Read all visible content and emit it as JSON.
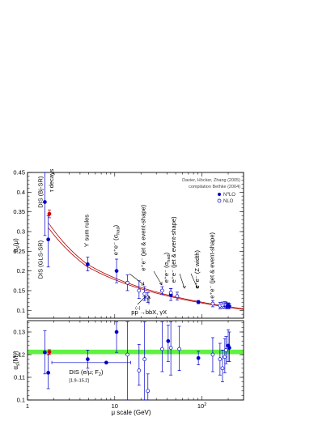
{
  "chart_data": {
    "type": "scatter",
    "credits": [
      "Davier, Höcker, Zhang (2005)",
      "compilation Bethke (2004)"
    ],
    "legend": [
      {
        "marker": "filled-circle",
        "label": "N³LO",
        "n3": "3"
      },
      {
        "marker": "open-circle",
        "label": "NLO"
      }
    ],
    "xlabel": "μ scale    (GeV)",
    "xscale": "log",
    "xlim": [
      1,
      300
    ],
    "x_ticks": [
      {
        "value": 1,
        "label": "1"
      },
      {
        "value": 10,
        "label": "10"
      },
      {
        "value": 100,
        "label": "10",
        "sup": "2"
      }
    ],
    "top_panel": {
      "ylabel": "α",
      "ylabel_sub": "s",
      "ylabel_arg": "(μ)",
      "ylim": [
        0.08,
        0.45
      ],
      "y_ticks": [
        0.1,
        0.15,
        0.2,
        0.25,
        0.3,
        0.35,
        0.4,
        0.45
      ],
      "y_tick_labels": [
        "0.1",
        "0.15",
        "0.2",
        "0.25",
        "0.3",
        "0.35",
        "0.4",
        "0.45"
      ],
      "points": [
        {
          "x": 1.58,
          "y": 0.375,
          "lo": 0.29,
          "hi": 0.45,
          "filled": true
        },
        {
          "x": 1.73,
          "y": 0.28,
          "lo": 0.21,
          "hi": 0.34,
          "filled": true
        },
        {
          "x": 1.78,
          "y": 0.345,
          "lo": 0.335,
          "hi": 0.355,
          "filled": true,
          "color": "#d00000"
        },
        {
          "x": 4.9,
          "y": 0.217,
          "lo": 0.2,
          "hi": 0.235,
          "filled": true
        },
        {
          "x": 10.5,
          "y": 0.2,
          "lo": 0.17,
          "hi": 0.23,
          "filled": true
        },
        {
          "x": 14,
          "y": 0.17,
          "lo": 0.15,
          "hi": 0.19,
          "filled": false
        },
        {
          "x": 19,
          "y": 0.15,
          "lo": 0.13,
          "hi": 0.175,
          "filled": false
        },
        {
          "x": 22,
          "y": 0.142,
          "lo": 0.125,
          "hi": 0.16,
          "filled": false
        },
        {
          "x": 24,
          "y": 0.133,
          "lo": 0.12,
          "hi": 0.145,
          "filled": false
        },
        {
          "x": 35,
          "y": 0.15,
          "lo": 0.14,
          "hi": 0.16,
          "filled": false
        },
        {
          "x": 44,
          "y": 0.14,
          "lo": 0.125,
          "hi": 0.155,
          "filled": true
        },
        {
          "x": 44,
          "y": 0.145,
          "lo": 0.135,
          "hi": 0.155,
          "filled": false
        },
        {
          "x": 52,
          "y": 0.136,
          "lo": 0.126,
          "hi": 0.146,
          "filled": false
        },
        {
          "x": 91,
          "y": 0.121,
          "lo": 0.117,
          "hi": 0.125,
          "filled": true
        },
        {
          "x": 133,
          "y": 0.117,
          "lo": 0.109,
          "hi": 0.125,
          "filled": false
        },
        {
          "x": 161,
          "y": 0.112,
          "lo": 0.104,
          "hi": 0.12,
          "filled": false
        },
        {
          "x": 172,
          "y": 0.113,
          "lo": 0.105,
          "hi": 0.121,
          "filled": false
        },
        {
          "x": 183,
          "y": 0.114,
          "lo": 0.106,
          "hi": 0.122,
          "filled": false
        },
        {
          "x": 189,
          "y": 0.113,
          "lo": 0.105,
          "hi": 0.121,
          "filled": false
        },
        {
          "x": 195,
          "y": 0.111,
          "lo": 0.104,
          "hi": 0.118,
          "filled": true
        },
        {
          "x": 200,
          "y": 0.112,
          "lo": 0.105,
          "hi": 0.119,
          "filled": true
        },
        {
          "x": 206,
          "y": 0.111,
          "lo": 0.104,
          "hi": 0.118,
          "filled": true
        }
      ],
      "labels": [
        {
          "text": "DIS (Bj-SR)",
          "x": 1.48,
          "y": 0.36,
          "rot": -90
        },
        {
          "text": "τ decays",
          "x": 1.98,
          "y": 0.4,
          "rot": -90
        },
        {
          "text": "DIS (GLS-SR)",
          "x": 1.48,
          "y": 0.18,
          "rot": -90
        },
        {
          "text": "ϒ sum rules",
          "x": 5.0,
          "y": 0.26,
          "rot": -90
        },
        {
          "text": "e⁺e⁻ (σ",
          "sub": "had",
          "tail": ")",
          "x": 10.8,
          "y": 0.24,
          "rot": -90
        },
        {
          "text": "e⁺e⁻ (jet & event-shape)",
          "x": 22.5,
          "y": 0.2,
          "rot": -90
        },
        {
          "text": "e⁺e⁻ (σ",
          "sub": "had",
          "tail": ")",
          "x": 41,
          "y": 0.17,
          "rot": -90
        },
        {
          "text": "e⁺e⁻ (jet & event-shape)",
          "x": 50,
          "y": 0.17,
          "rot": -90
        },
        {
          "text": "e⁺e⁻ (Z width)",
          "x": 93,
          "y": 0.155,
          "rot": -90
        },
        {
          "text": "e⁺e⁻ (jet & event-shape)",
          "x": 138,
          "y": 0.13,
          "rot": -90
        },
        {
          "text": "pp",
          "x": 15.5,
          "y": 0.09,
          "rot": 0
        },
        {
          "text": "→bbX, γX",
          "x": 19.2,
          "y": 0.09,
          "rot": 0
        }
      ]
    },
    "bottom_panel": {
      "ylabel": "α",
      "ylabel_sub": "s",
      "ylabel_arg": "(M",
      "ylabel_arg_sub": "Z",
      "ylabel_tail": ")",
      "ylim": [
        0.1,
        0.135
      ],
      "y_ticks": [
        0.1,
        0.11,
        0.12,
        0.13
      ],
      "y_tick_labels": [
        "0.1",
        "0.11",
        "0.12",
        "0.13"
      ],
      "band": [
        0.1202,
        0.1222
      ],
      "points": [
        {
          "x": 1.58,
          "y": 0.121,
          "lo": 0.1115,
          "hi": 0.1305,
          "filled": true
        },
        {
          "x": 1.73,
          "y": 0.112,
          "lo": 0.105,
          "hi": 0.12,
          "filled": true
        },
        {
          "x": 1.78,
          "y": 0.1212,
          "lo": 0.1202,
          "hi": 0.1222,
          "filled": true,
          "color": "#d00000"
        },
        {
          "x": 4.9,
          "y": 0.118,
          "lo": 0.114,
          "hi": 0.122,
          "filled": true
        },
        {
          "x": 8.0,
          "y": 0.1165,
          "lo": 0.1165,
          "hi": 0.1165,
          "filled": true,
          "xlo": 1.9,
          "xhi": 15.2
        },
        {
          "x": 10.5,
          "y": 0.13,
          "lo": 0.121,
          "hi": 0.1345,
          "filled": true
        },
        {
          "x": 14,
          "y": 0.12,
          "lo": 0.1,
          "hi": 0.1345,
          "filled": false
        },
        {
          "x": 19,
          "y": 0.113,
          "lo": 0.1065,
          "hi": 0.1245,
          "filled": false
        },
        {
          "x": 22,
          "y": 0.118,
          "lo": 0.1,
          "hi": 0.1345,
          "filled": false
        },
        {
          "x": 24,
          "y": 0.104,
          "lo": 0.1,
          "hi": 0.1115,
          "filled": false
        },
        {
          "x": 35,
          "y": 0.1225,
          "lo": 0.1125,
          "hi": 0.1345,
          "filled": false
        },
        {
          "x": 41,
          "y": 0.126,
          "lo": 0.117,
          "hi": 0.133,
          "filled": true
        },
        {
          "x": 44,
          "y": 0.123,
          "lo": 0.111,
          "hi": 0.1345,
          "filled": false
        },
        {
          "x": 55,
          "y": 0.1225,
          "lo": 0.113,
          "hi": 0.1325,
          "filled": false
        },
        {
          "x": 91,
          "y": 0.1185,
          "lo": 0.1155,
          "hi": 0.1215,
          "filled": true
        },
        {
          "x": 133,
          "y": 0.12,
          "lo": 0.1125,
          "hi": 0.1275,
          "filled": false
        },
        {
          "x": 161,
          "y": 0.118,
          "lo": 0.111,
          "hi": 0.125,
          "filled": false
        },
        {
          "x": 172,
          "y": 0.114,
          "lo": 0.108,
          "hi": 0.122,
          "filled": false
        },
        {
          "x": 183,
          "y": 0.119,
          "lo": 0.112,
          "hi": 0.127,
          "filled": false
        },
        {
          "x": 189,
          "y": 0.122,
          "lo": 0.116,
          "hi": 0.128,
          "filled": false
        },
        {
          "x": 200,
          "y": 0.124,
          "lo": 0.117,
          "hi": 0.131,
          "filled": true
        },
        {
          "x": 206,
          "y": 0.123,
          "lo": 0.117,
          "hi": 0.13,
          "filled": true
        }
      ],
      "labels": [
        {
          "text": "DIS (e/μ; F",
          "sub": "2",
          "tail": ")",
          "x": 3.0,
          "y": 0.1115,
          "size": 7.5
        },
        {
          "text": "[1.9–15.2]",
          "x": 3.0,
          "y": 0.108,
          "size": 5.5
        }
      ]
    },
    "curve_alpha_mz": 0.1212,
    "curve_band": [
      0.1202,
      0.1222
    ],
    "colors": {
      "points": "#0000cc",
      "curve": "#b00000",
      "tau": "#d00000",
      "band": "#44ee22",
      "frame": "#000000"
    }
  }
}
